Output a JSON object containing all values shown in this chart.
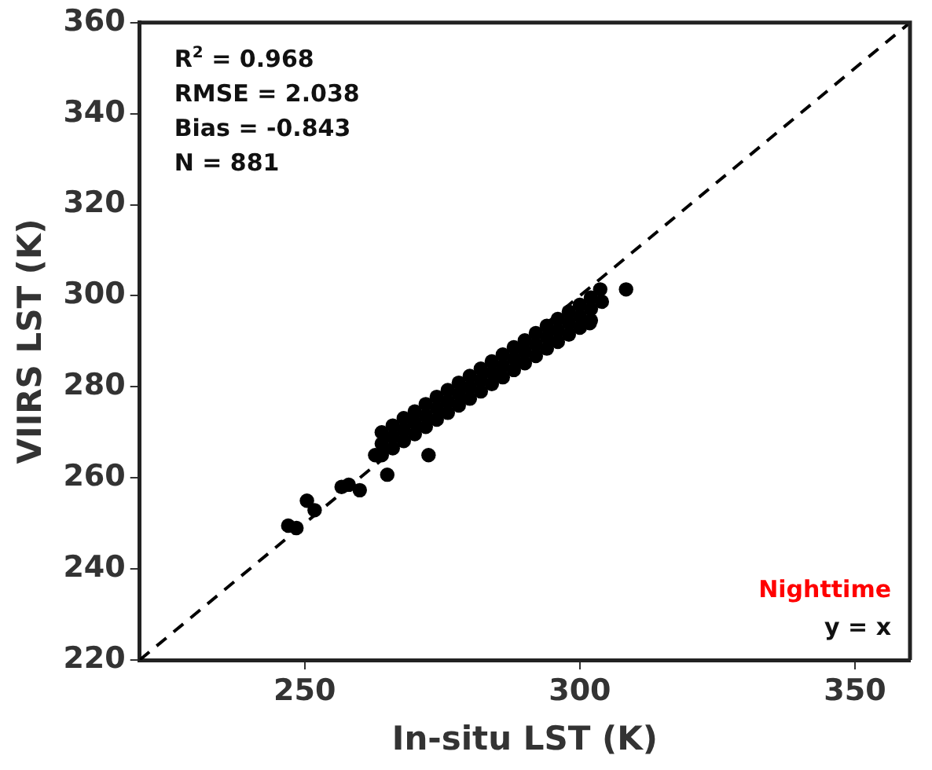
{
  "chart_data": {
    "type": "scatter",
    "xlabel": "In-situ LST (K)",
    "ylabel": "VIIRS LST (K)",
    "xlim": [
      220,
      360
    ],
    "ylim": [
      220,
      360
    ],
    "xticks": [
      250,
      300,
      350
    ],
    "yticks": [
      220,
      240,
      260,
      280,
      300,
      320,
      340,
      360
    ],
    "grid": false,
    "legend": false,
    "marker": "circle",
    "annotations": [
      "R$^{2}$ = 0.968",
      "RMSE = 2.038",
      "Bias = -0.843",
      "N = 881",
      "Nighttime",
      "y = x"
    ],
    "series": [
      {
        "color": "#000000",
        "x": [
          247,
          248.5,
          250.4,
          251.8,
          256.7,
          258,
          260,
          262.8,
          265,
          272.5,
          303.7,
          308.4,
          301.8,
          264,
          264,
          264,
          266,
          266,
          266,
          268,
          268,
          268,
          270,
          270,
          270,
          272,
          272,
          272,
          274,
          274,
          274,
          276,
          276,
          276,
          278,
          278,
          278,
          280,
          280,
          280,
          282,
          282,
          282,
          284,
          284,
          284,
          286,
          286,
          286,
          288,
          288,
          288,
          290,
          290,
          290,
          292,
          292,
          292,
          294,
          294,
          294,
          296,
          296,
          296,
          298,
          298,
          298,
          300,
          300,
          300,
          302,
          302,
          302,
          304
        ],
        "values": [
          249.5,
          249,
          255,
          252.9,
          258,
          258.5,
          257.3,
          265,
          260.7,
          265,
          301.4,
          301.4,
          294,
          265,
          267.5,
          270,
          266.5,
          269,
          271.5,
          268.1,
          270.6,
          273.1,
          269.6,
          272.1,
          274.6,
          271.2,
          273.7,
          276.2,
          272.8,
          275.3,
          277.8,
          274.3,
          276.8,
          279.3,
          275.9,
          278.4,
          280.9,
          277.4,
          279.9,
          282.4,
          279,
          281.5,
          284,
          280.6,
          283.1,
          285.6,
          282.1,
          284.6,
          287.1,
          283.7,
          286.2,
          288.7,
          285.2,
          287.7,
          290.2,
          286.8,
          289.3,
          291.8,
          288.4,
          290.9,
          293.4,
          289.9,
          292.4,
          294.9,
          291.5,
          294,
          296.5,
          293,
          295.5,
          298,
          294.6,
          297.1,
          299.6,
          298.7
        ]
      },
      {
        "type": "line",
        "color": "#000000",
        "line_style": "dashed",
        "marker": "none",
        "x": [
          220,
          360
        ],
        "values": [
          220,
          360
        ]
      }
    ]
  }
}
